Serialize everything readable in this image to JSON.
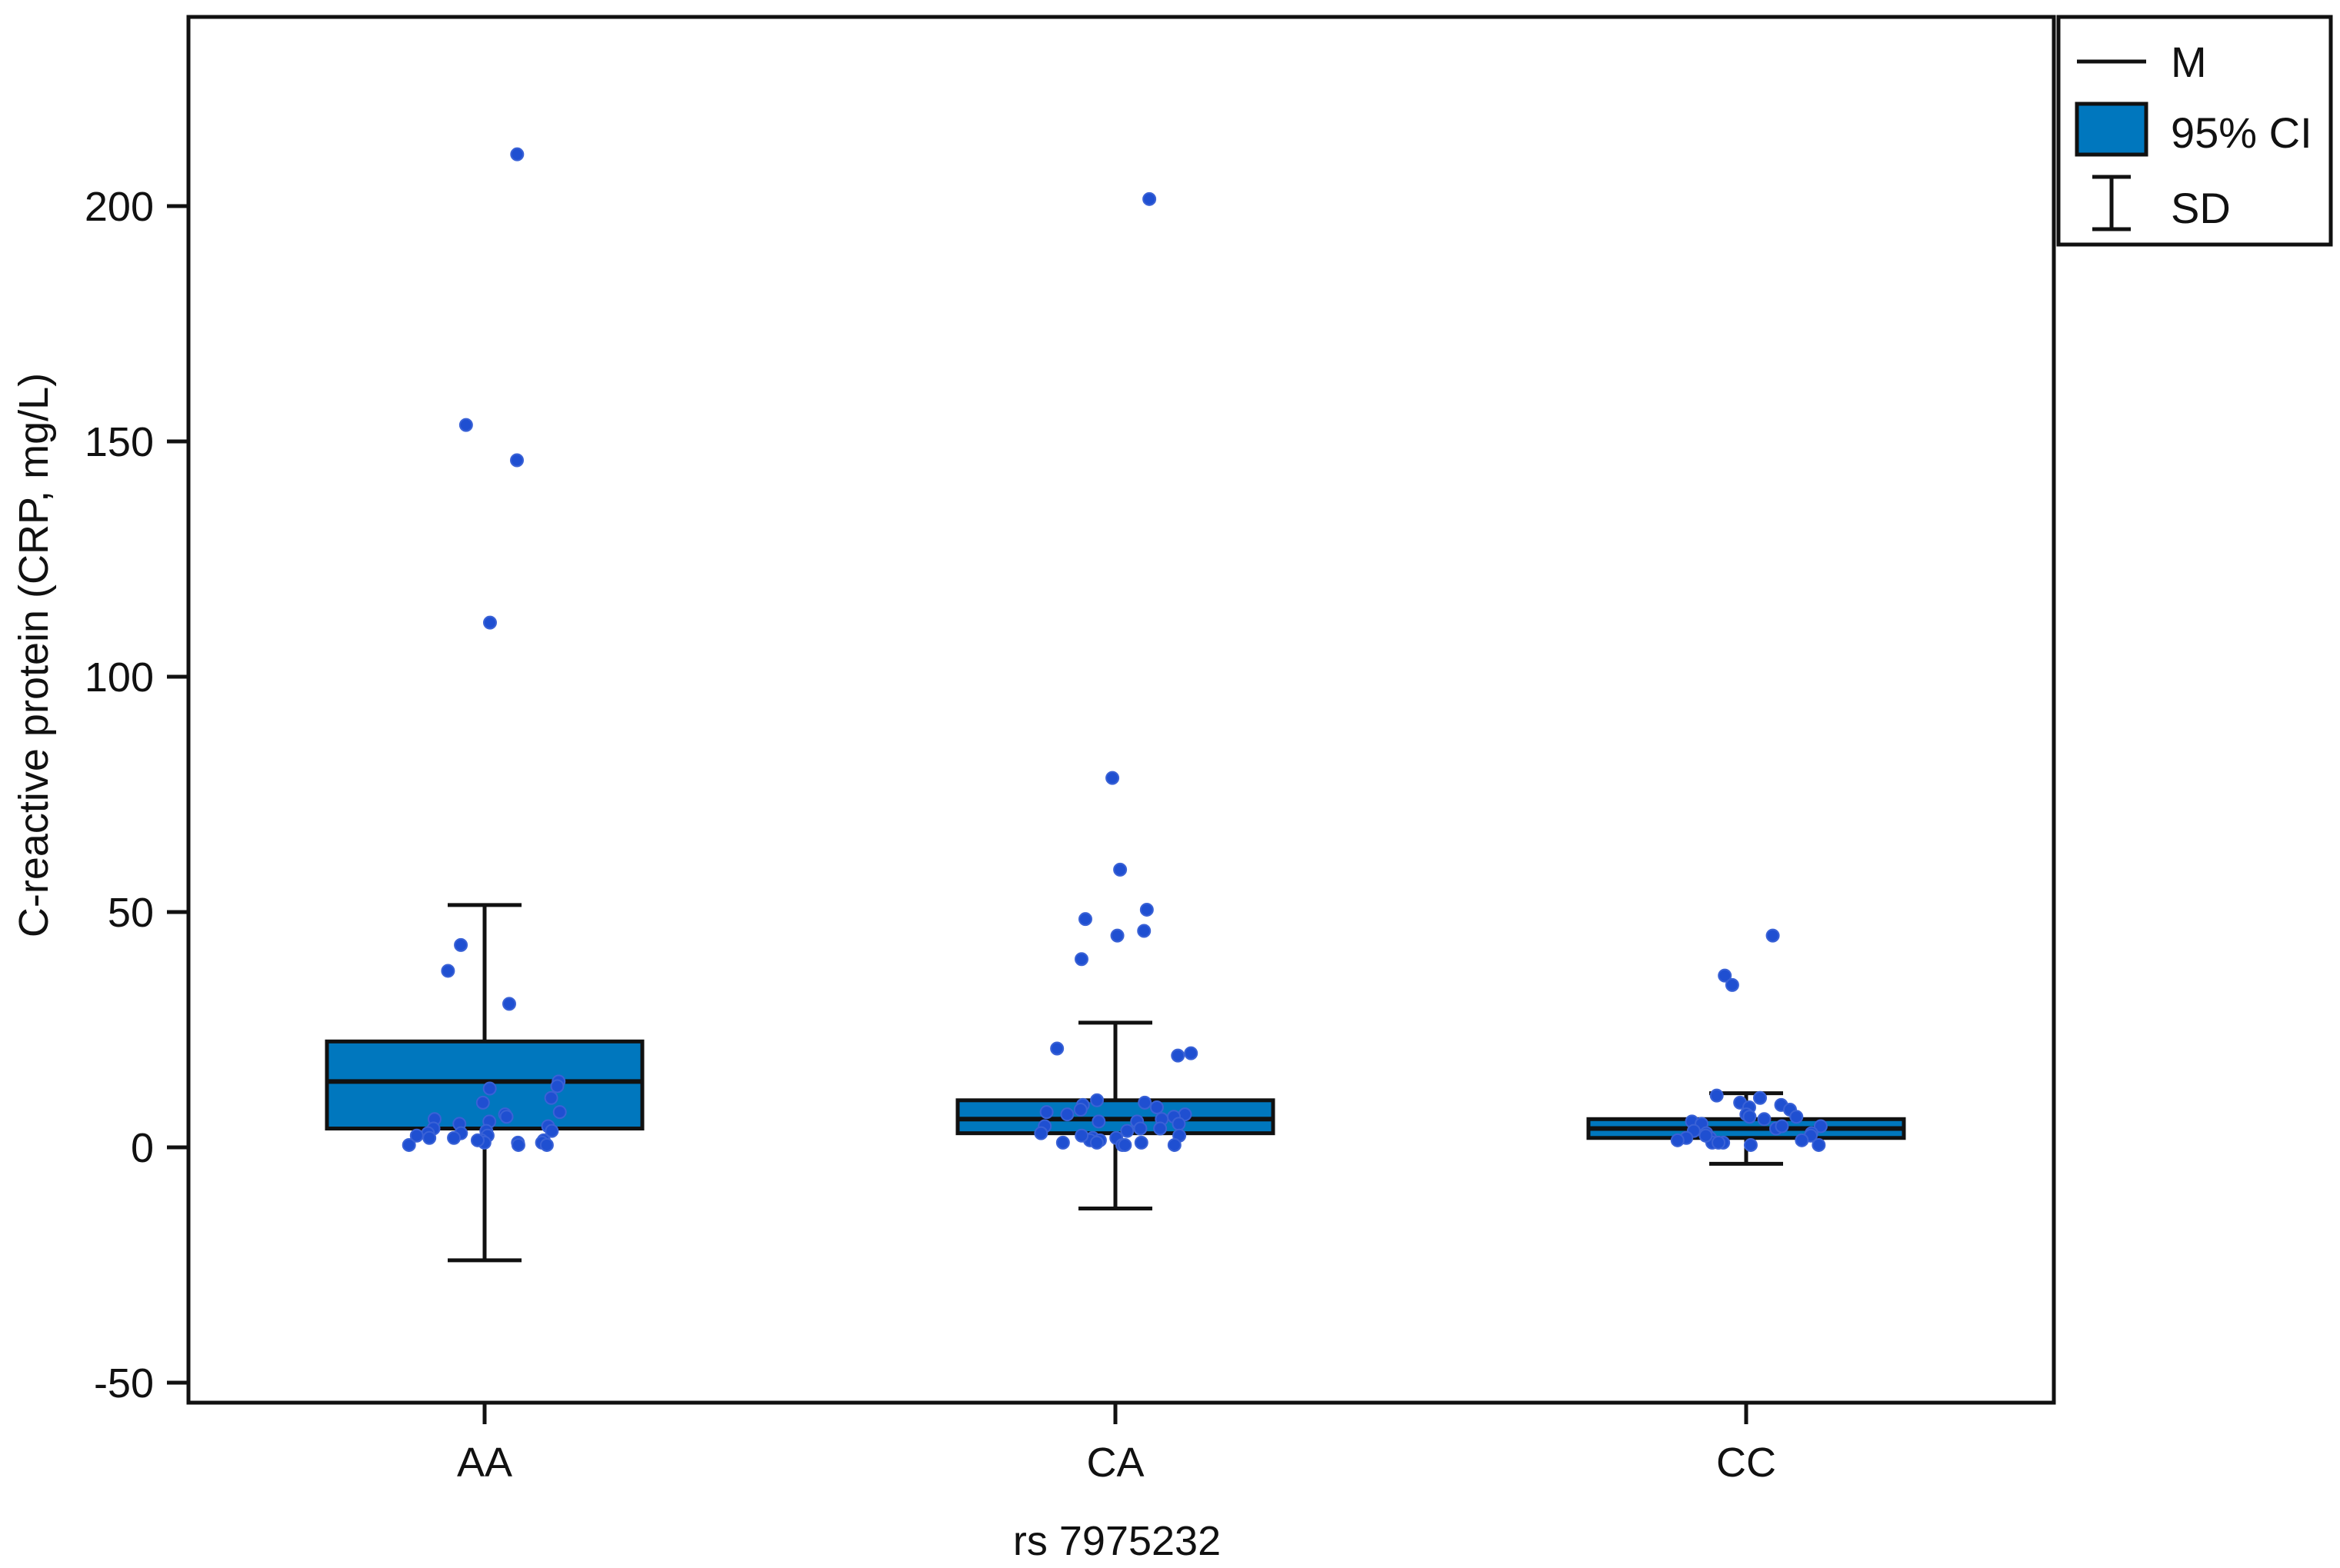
{
  "colors": {
    "box_fill": "#0077be",
    "point": "#1f4fd1",
    "line": "#111111",
    "background": "#ffffff"
  },
  "chart_data": {
    "type": "box",
    "title": "",
    "xlabel": "rs 7975232",
    "ylabel": "C-reactive protein (CRP, mg/L)",
    "categories": [
      "AA",
      "CA",
      "CC"
    ],
    "ylim": [
      -50,
      235
    ],
    "yticks": [
      -50,
      0,
      50,
      100,
      150,
      200
    ],
    "ytick_labels": [
      "-50",
      "0",
      "50",
      "100",
      "150",
      "200"
    ],
    "grid": false,
    "legend": {
      "position": "top-right",
      "entries": [
        {
          "name": "M",
          "kind": "mean-line"
        },
        {
          "name": "95% CI",
          "kind": "box"
        },
        {
          "name": "SD",
          "kind": "error-bar"
        }
      ]
    },
    "groups": [
      {
        "category": "AA",
        "mean": 14,
        "ci_low": 4,
        "ci_high": 22.5,
        "sd_low": -24,
        "sd_high": 51.5,
        "points": [
          211,
          153.5,
          146,
          111.5,
          43,
          37.5,
          30.5,
          14,
          13,
          12.5,
          10.5,
          9.5,
          7.5,
          7,
          6.5,
          6,
          5.5,
          5,
          4.5,
          4,
          3.5,
          3,
          3,
          2.5,
          2,
          2,
          1.5,
          1.5,
          1,
          1,
          1,
          0.5,
          0.5,
          0.5,
          1.5,
          2.5,
          3.5
        ]
      },
      {
        "category": "CA",
        "mean": 6,
        "ci_low": 3,
        "ci_high": 10,
        "sd_low": -13,
        "sd_high": 26.5,
        "points": [
          201.5,
          78.5,
          59,
          50.5,
          48.5,
          46,
          45,
          40,
          21,
          20,
          19.5,
          10,
          9.5,
          9,
          8.5,
          8,
          7.5,
          7,
          6.5,
          6,
          5.5,
          5,
          4.5,
          4,
          3.5,
          3,
          2.5,
          2,
          2,
          1.5,
          1.5,
          1,
          1,
          0.5,
          0.5,
          0.5,
          1,
          2.5,
          4,
          5.5,
          7
        ]
      },
      {
        "category": "CC",
        "mean": 4,
        "ci_low": 2,
        "ci_high": 6,
        "sd_low": -3.5,
        "sd_high": 11.5,
        "points": [
          45,
          36.5,
          34.5,
          11,
          10.5,
          9.5,
          9,
          8.5,
          8,
          7,
          6.5,
          6,
          5.5,
          5,
          4.5,
          4,
          3.5,
          3,
          3,
          2.5,
          2,
          2,
          1.5,
          1.5,
          1,
          1,
          0.5,
          0.5,
          1,
          2.5,
          4.5,
          6.5
        ]
      }
    ]
  }
}
